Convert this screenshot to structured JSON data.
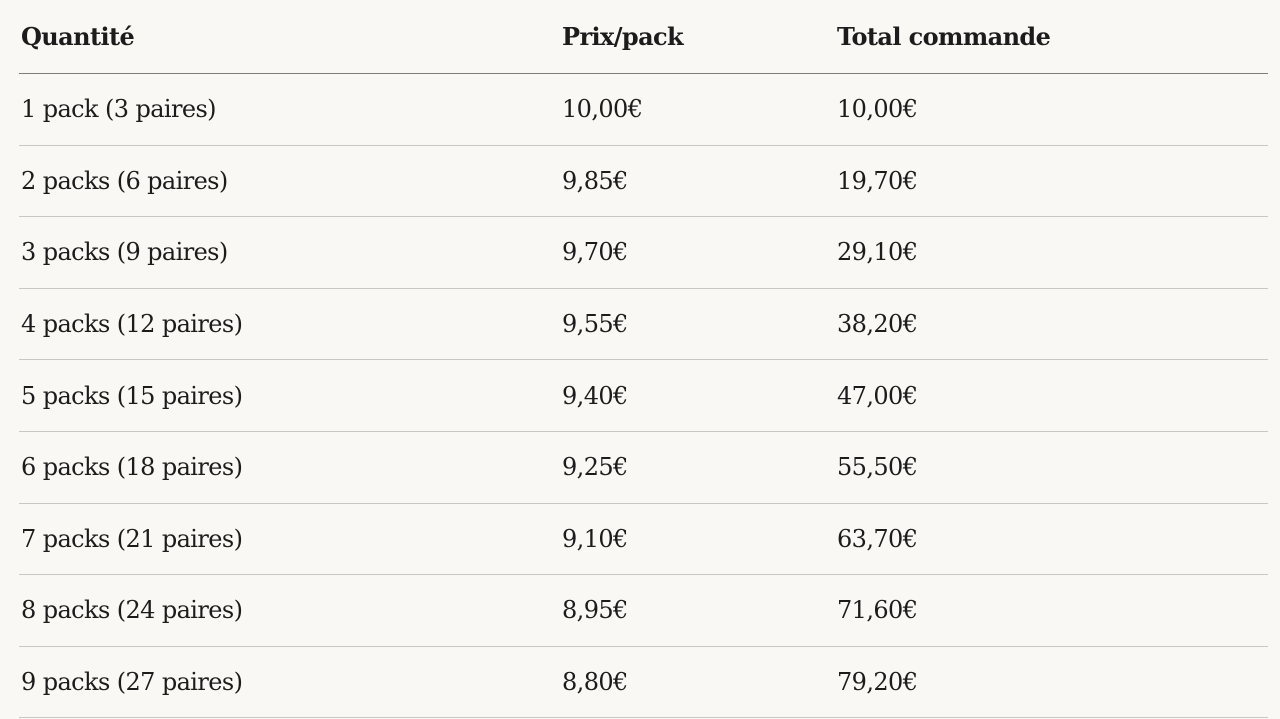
{
  "table": {
    "headers": {
      "quantity": "Quantité",
      "price_per_pack": "Prix/pack",
      "order_total": "Total commande"
    },
    "rows": [
      {
        "quantity": "1 pack (3 paires)",
        "price": "10,00€",
        "total": "10,00€"
      },
      {
        "quantity": "2 packs (6 paires)",
        "price": "9,85€",
        "total": "19,70€"
      },
      {
        "quantity": "3 packs (9 paires)",
        "price": "9,70€",
        "total": "29,10€"
      },
      {
        "quantity": "4 packs (12 paires)",
        "price": "9,55€",
        "total": "38,20€"
      },
      {
        "quantity": "5 packs (15 paires)",
        "price": "9,40€",
        "total": "47,00€"
      },
      {
        "quantity": "6 packs (18 paires)",
        "price": "9,25€",
        "total": "55,50€"
      },
      {
        "quantity": "7 packs (21 paires)",
        "price": "9,10€",
        "total": "63,70€"
      },
      {
        "quantity": "8 packs (24 paires)",
        "price": "8,95€",
        "total": "71,60€"
      },
      {
        "quantity": "9 packs (27 paires)",
        "price": "8,80€",
        "total": "79,20€"
      }
    ]
  }
}
